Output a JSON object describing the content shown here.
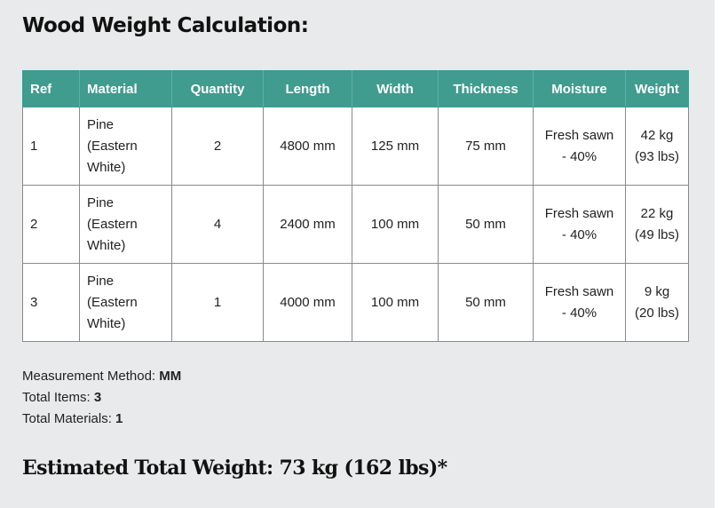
{
  "page": {
    "title": "Wood Weight Calculation:",
    "total_weight": "Estimated Total Weight: 73 kg (162 lbs)*"
  },
  "table": {
    "headers": [
      "Ref",
      "Material",
      "Quantity",
      "Length",
      "Width",
      "Thickness",
      "Moisture",
      "Weight"
    ],
    "rows": [
      {
        "ref": "1",
        "material": [
          "Pine",
          "(Eastern",
          "White)"
        ],
        "quantity": "2",
        "length": "4800 mm",
        "width": "125 mm",
        "thickness": "75 mm",
        "moisture": [
          "Fresh sawn",
          "- 40%"
        ],
        "weight": [
          "42 kg",
          "(93 lbs)"
        ]
      },
      {
        "ref": "2",
        "material": [
          "Pine",
          "(Eastern",
          "White)"
        ],
        "quantity": "4",
        "length": "2400 mm",
        "width": "100 mm",
        "thickness": "50 mm",
        "moisture": [
          "Fresh sawn",
          "- 40%"
        ],
        "weight": [
          "22 kg",
          "(49 lbs)"
        ]
      },
      {
        "ref": "3",
        "material": [
          "Pine",
          "(Eastern",
          "White)"
        ],
        "quantity": "1",
        "length": "4000 mm",
        "width": "100 mm",
        "thickness": "50 mm",
        "moisture": [
          "Fresh sawn",
          "- 40%"
        ],
        "weight": [
          "9 kg",
          "(20 lbs)"
        ]
      }
    ]
  },
  "summary": {
    "method_label": "Measurement Method: ",
    "method_value": "MM",
    "items_label": "Total Items: ",
    "items_value": "3",
    "materials_label": "Total Materials: ",
    "materials_value": "1"
  },
  "colors": {
    "header_bg": "#3f9c8f",
    "panel_bg": "#e9eaeb"
  }
}
